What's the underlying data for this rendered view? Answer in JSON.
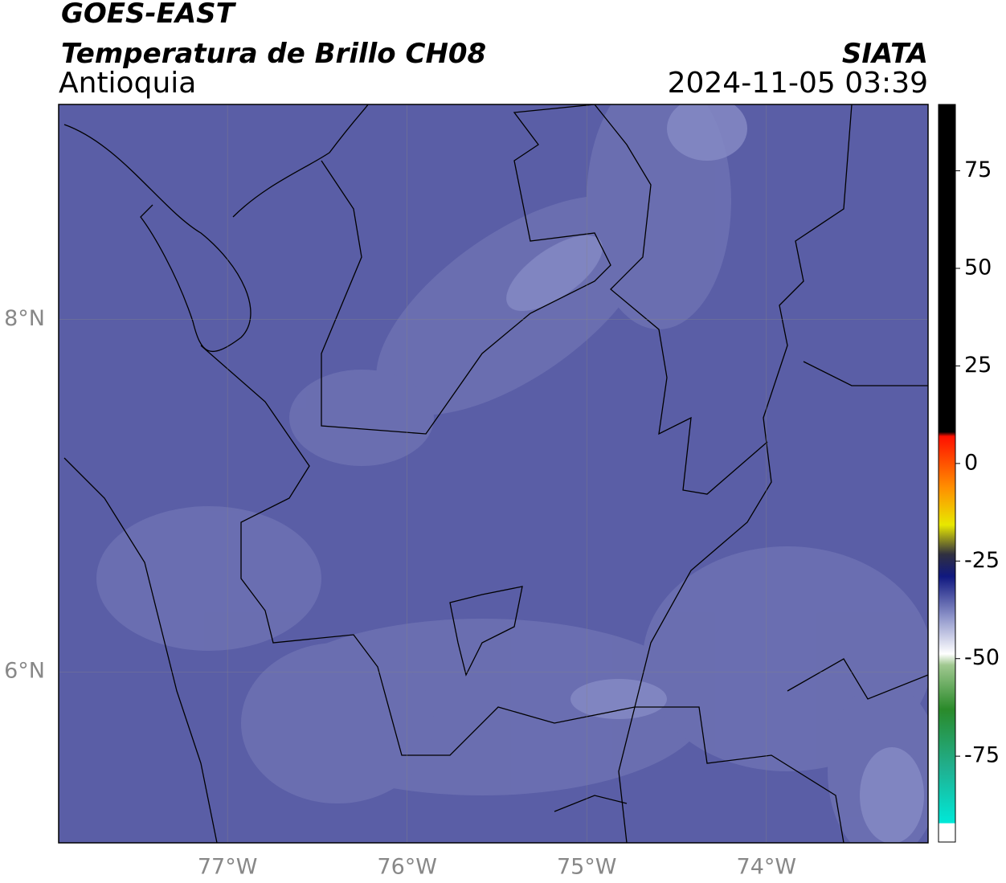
{
  "header": {
    "title": "GOES-EAST",
    "subtitle": "Temperatura de Brillo CH08",
    "region": "Antioquia",
    "source": "SIATA",
    "datetime": "2024-11-05 03:39"
  },
  "map": {
    "xlim": [
      -77.94,
      -73.1
    ],
    "ylim": [
      5.03,
      9.22
    ],
    "grid": true,
    "xticks": [
      {
        "value": -77,
        "label": "77°W"
      },
      {
        "value": -76,
        "label": "76°W"
      },
      {
        "value": -75,
        "label": "75°W"
      },
      {
        "value": -74,
        "label": "74°W"
      }
    ],
    "yticks": [
      {
        "value": 8,
        "label": "8°N"
      },
      {
        "value": 6,
        "label": "6°N"
      }
    ]
  },
  "colorbar": {
    "lim": [
      -97,
      92
    ],
    "ticks": [
      75,
      50,
      25,
      0,
      -25,
      -50,
      -75
    ]
  }
}
